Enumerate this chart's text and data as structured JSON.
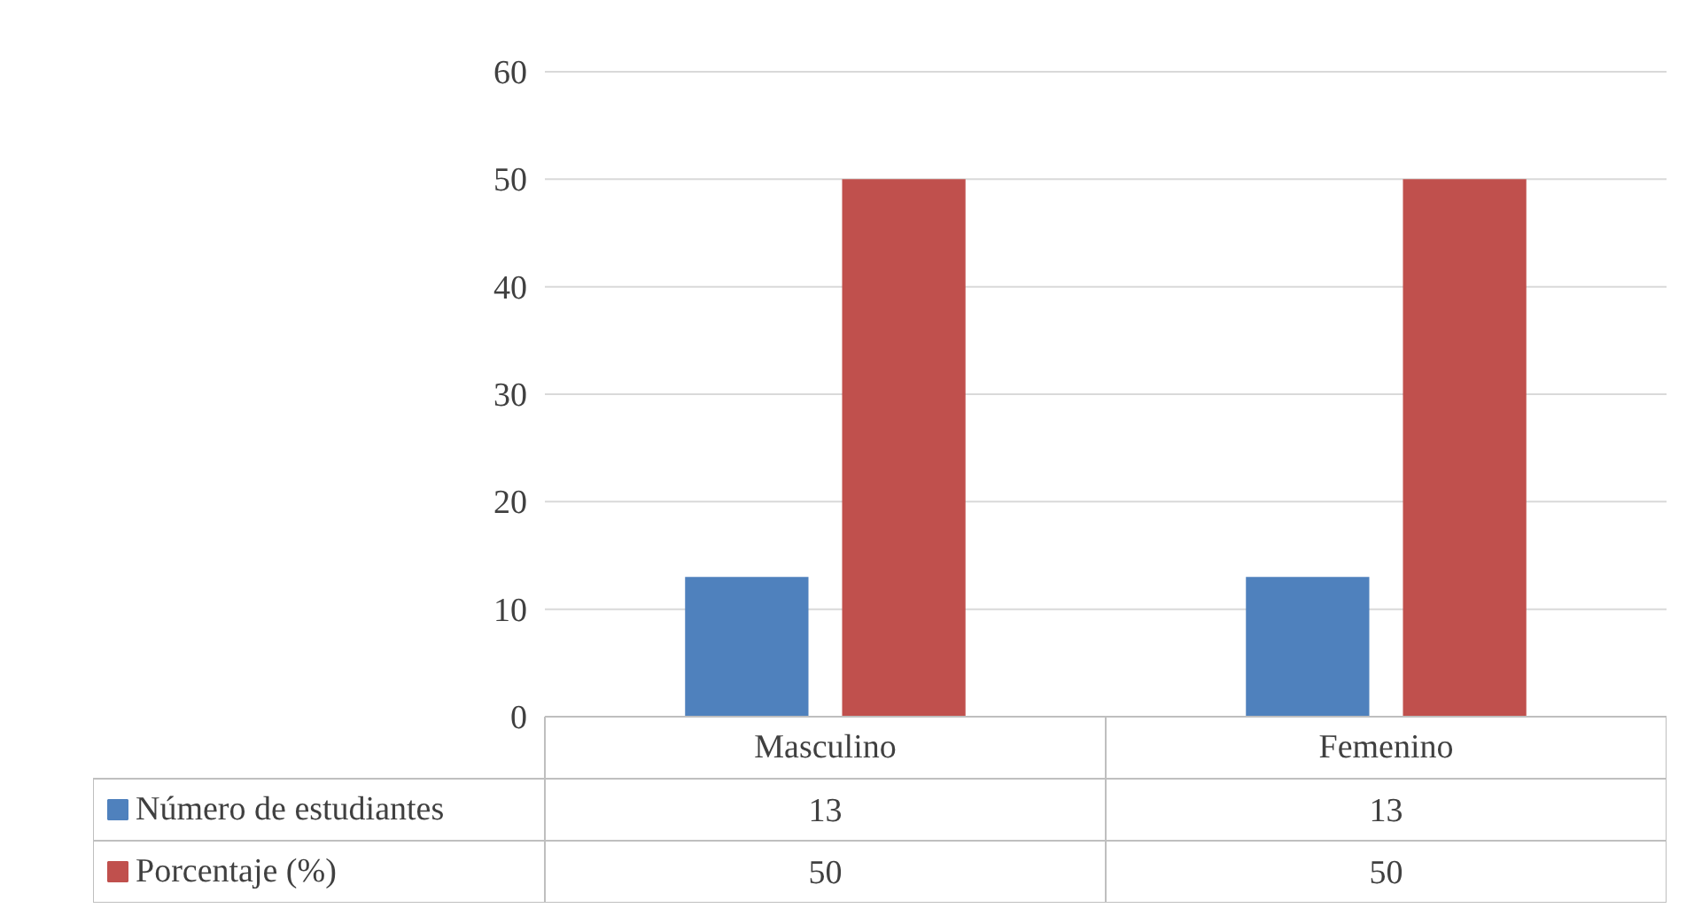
{
  "chart_data": {
    "type": "bar",
    "categories": [
      "Masculino",
      "Femenino"
    ],
    "series": [
      {
        "name": "Número de estudiantes",
        "color": "#4f81bd",
        "values": [
          13,
          13
        ]
      },
      {
        "name": "Porcentaje (%)",
        "color": "#c0504d",
        "values": [
          50,
          50
        ]
      }
    ],
    "ylim": [
      0,
      60
    ],
    "yticks": [
      0,
      10,
      20,
      30,
      40,
      50,
      60
    ],
    "grid": "y",
    "legend": "bottom",
    "data_labels": true
  }
}
